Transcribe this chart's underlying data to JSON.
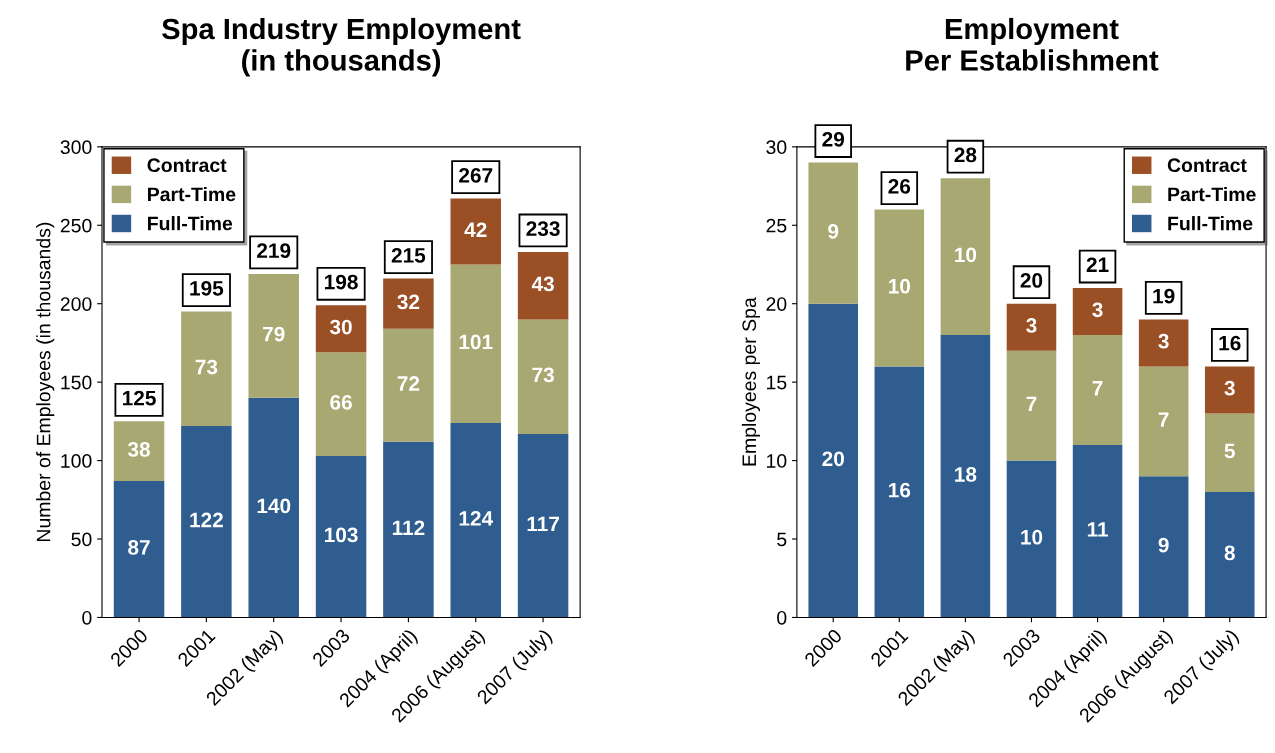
{
  "chart_data": [
    {
      "type": "bar",
      "stacked": true,
      "title": "Spa Industry Employment\n(in thousands)",
      "ylabel": "Number of Employees (in thousands)",
      "categories": [
        "2000",
        "2001",
        "2002 (May)",
        "2003",
        "2004 (April)",
        "2006 (August)",
        "2007 (July)"
      ],
      "series": [
        {
          "name": "Full-Time",
          "color": "#2f5d8f",
          "values": [
            87,
            122,
            140,
            103,
            112,
            124,
            117
          ]
        },
        {
          "name": "Part-Time",
          "color": "#a8a873",
          "values": [
            38,
            73,
            79,
            66,
            72,
            101,
            73
          ]
        },
        {
          "name": "Contract",
          "color": "#9a4f24",
          "values": [
            null,
            null,
            null,
            30,
            32,
            42,
            43
          ]
        }
      ],
      "totals": [
        "125",
        "195",
        "219",
        "198",
        "215",
        "267",
        "233"
      ],
      "ylim": [
        0,
        300
      ],
      "yticks": [
        0,
        50,
        100,
        150,
        200,
        250,
        300
      ],
      "grid": false,
      "legend": "top left",
      "data_labels": true
    },
    {
      "type": "bar",
      "stacked": true,
      "title": "Employment\nPer Establishment",
      "ylabel": "Employees per Spa",
      "categories": [
        "2000",
        "2001",
        "2002 (May)",
        "2003",
        "2004 (April)",
        "2006 (August)",
        "2007 (July)"
      ],
      "series": [
        {
          "name": "Full-Time",
          "color": "#2f5d8f",
          "values": [
            20,
            16,
            18,
            10,
            11,
            9,
            8
          ]
        },
        {
          "name": "Part-Time",
          "color": "#a8a873",
          "values": [
            9,
            10,
            10,
            7,
            7,
            7,
            5
          ]
        },
        {
          "name": "Contract",
          "color": "#9a4f24",
          "values": [
            null,
            null,
            null,
            3,
            3,
            3,
            3
          ]
        }
      ],
      "totals": [
        "29",
        "26",
        "28",
        "20",
        "21",
        "19",
        "16"
      ],
      "ylim": [
        0,
        30
      ],
      "yticks": [
        0,
        5,
        10,
        15,
        20,
        25,
        30
      ],
      "grid": false,
      "legend": "top right",
      "data_labels": true
    }
  ]
}
